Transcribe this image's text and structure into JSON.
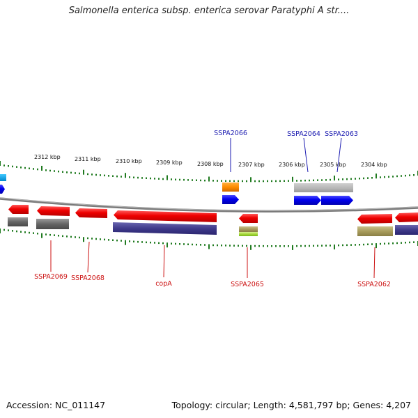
{
  "title": "Salmonella enterica subsp. enterica serovar Paratyphi A str....",
  "footer": {
    "accession": "Accession: NC_011147",
    "topology": "Topology: circular; Length: 4,581,797 bp; Genes: 4,207"
  },
  "colors": {
    "forward_label": "#1a1ab0",
    "reverse_label": "#cc1111",
    "backbone": "#888888",
    "tick": "#1f7a1f"
  },
  "scale_labels": [
    "2312 kbp",
    "2311 kbp",
    "2310 kbp",
    "2309 kbp",
    "2308 kbp",
    "2307 kbp",
    "2306 kbp",
    "2305 kbp",
    "2304 kbp"
  ],
  "gene_labels": {
    "forward": [
      "SSPA2066",
      "SSPA2064",
      "SSPA2063"
    ],
    "reverse": [
      "SSPA2069",
      "SSPA2068",
      "copA",
      "SSPA2065",
      "SSPA2062"
    ]
  }
}
